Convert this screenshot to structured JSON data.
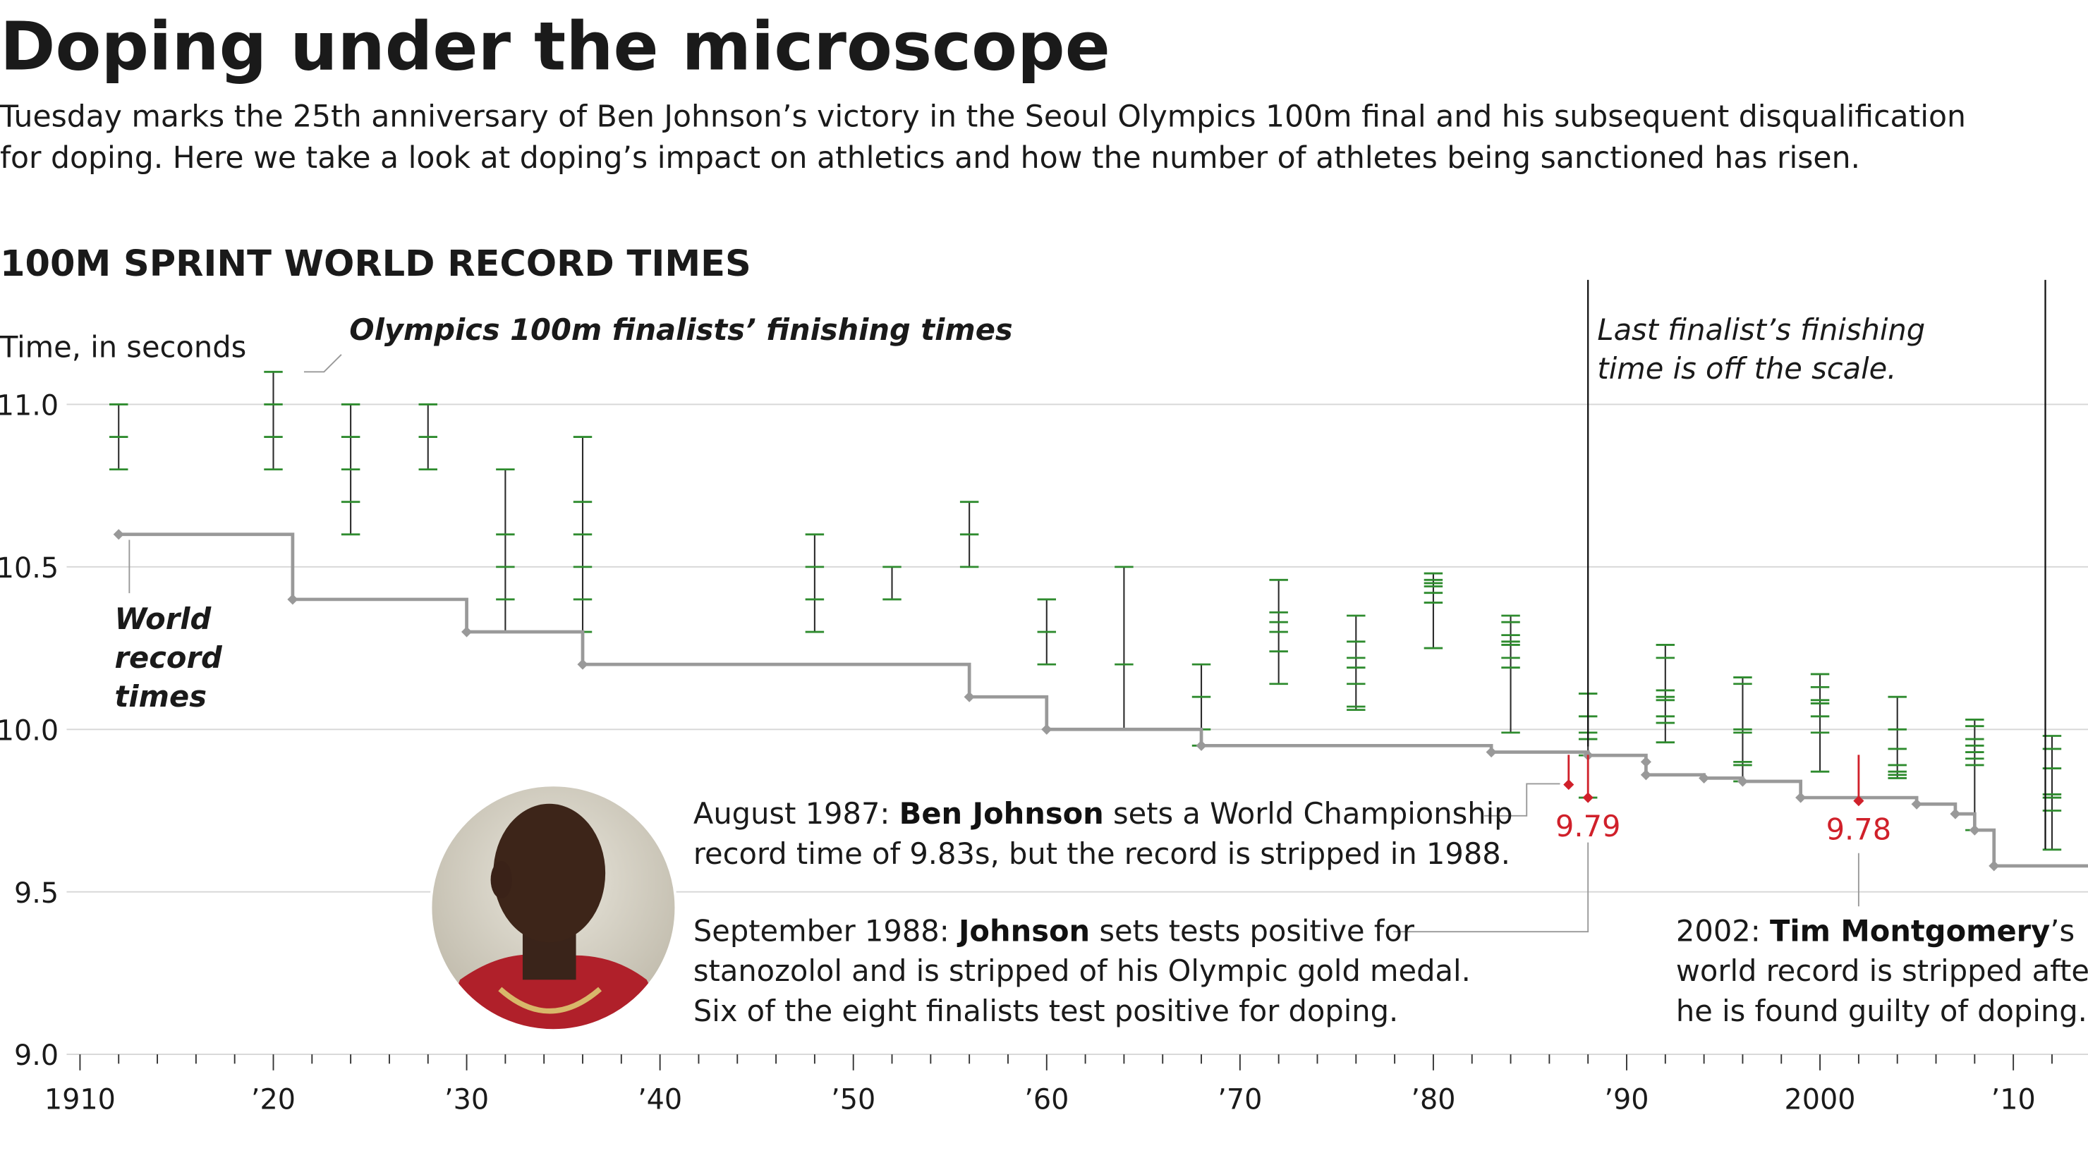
{
  "header": {
    "title": "Doping under the microscope",
    "subtitle_lines": [
      "Tuesday marks the 25th anniversary of Ben Johnson’s victory in the Seoul Olympics 100m final and his subsequent disqualification",
      "for doping. Here we take a look at doping’s impact on athletics and how the number of athletes being sanctioned has risen."
    ]
  },
  "chart_data": {
    "type": "step",
    "title": "100M SPRINT WORLD RECORD TIMES",
    "y_label": "Time, in seconds",
    "xlim": [
      1910,
      2014
    ],
    "ylim": [
      9.0,
      11.1
    ],
    "xticks": [
      1910,
      {
        "value": 1920,
        "label": "’20"
      },
      {
        "value": 1930,
        "label": "’30"
      },
      {
        "value": 1940,
        "label": "’40"
      },
      {
        "value": 1950,
        "label": "’50"
      },
      {
        "value": 1960,
        "label": "’60"
      },
      {
        "value": 1970,
        "label": "’70"
      },
      {
        "value": 1980,
        "label": "’80"
      },
      {
        "value": 1990,
        "label": "’90"
      },
      2000,
      {
        "value": 2010,
        "label": "’10"
      }
    ],
    "xminor_ticks": [
      1912,
      1914,
      1916,
      1918,
      1922,
      1924,
      1926,
      1928,
      1932,
      1934,
      1936,
      1938,
      1942,
      1944,
      1946,
      1948,
      1952,
      1954,
      1956,
      1958,
      1962,
      1964,
      1966,
      1968,
      1972,
      1974,
      1976,
      1978,
      1982,
      1984,
      1986,
      1988,
      1992,
      1994,
      1996,
      1998,
      2002,
      2004,
      2006,
      2008,
      2012
    ],
    "yticks": [
      {
        "value": 9.0,
        "label": "9.0"
      },
      9.5,
      {
        "value": 10.0,
        "label": "10.0"
      },
      10.5,
      {
        "value": 11.0,
        "label": "11.0"
      }
    ],
    "grid": true,
    "series": [
      {
        "name": "World record times",
        "color": "#999999",
        "x": [
          1912,
          1921,
          1930,
          1936,
          1956,
          1960,
          1968,
          1983,
          1988,
          1991,
          1991,
          1994,
          1996,
          1999,
          2005,
          2007,
          2008,
          2009
        ],
        "values": [
          10.6,
          10.4,
          10.3,
          10.2,
          10.1,
          10.0,
          9.95,
          9.93,
          9.92,
          9.9,
          9.86,
          9.85,
          9.84,
          9.79,
          9.77,
          9.74,
          9.69,
          9.58
        ]
      }
    ],
    "series_label_lines": [
      "World",
      "record",
      "times"
    ],
    "stripped": {
      "color": "#d0202a",
      "x": [
        1987,
        1988,
        2002
      ],
      "values": [
        9.83,
        9.79,
        9.78
      ],
      "value_labels": [
        null,
        "9.79",
        "9.78"
      ]
    },
    "finalists": {
      "name": "Olympics 100m finalists’ finishing times",
      "color": "#2e8b2e",
      "x": [
        1912,
        1920,
        1924,
        1928,
        1932,
        1936,
        1948,
        1952,
        1956,
        1960,
        1964,
        1968,
        1972,
        1976,
        1980,
        1984,
        1988,
        1992,
        1996,
        2000,
        2004,
        2008,
        2012
      ],
      "values": [
        [
          10.8,
          10.9,
          11.0
        ],
        [
          10.8,
          10.9,
          11.0,
          11.1
        ],
        [
          10.6,
          10.7,
          10.8,
          10.9,
          11.0
        ],
        [
          10.8,
          10.9,
          11.0
        ],
        [
          10.3,
          10.4,
          10.5,
          10.6,
          10.8
        ],
        [
          10.3,
          10.4,
          10.5,
          10.6,
          10.7,
          10.9
        ],
        [
          10.3,
          10.4,
          10.5,
          10.6
        ],
        [
          10.4,
          10.5
        ],
        [
          10.5,
          10.6,
          10.7
        ],
        [
          10.2,
          10.3,
          10.4
        ],
        [
          10.0,
          10.2,
          10.5
        ],
        [
          9.95,
          10.0,
          10.1,
          10.2
        ],
        [
          10.14,
          10.24,
          10.3,
          10.33,
          10.36,
          10.46
        ],
        [
          10.06,
          10.07,
          10.14,
          10.19,
          10.22,
          10.27,
          10.35
        ],
        [
          10.25,
          10.39,
          10.42,
          10.44,
          10.45,
          10.46,
          10.48
        ],
        [
          9.99,
          10.19,
          10.22,
          10.26,
          10.27,
          10.29,
          10.33,
          10.35
        ],
        [
          9.79,
          9.92,
          9.97,
          9.99,
          10.04,
          10.11
        ],
        [
          9.96,
          10.02,
          10.04,
          10.09,
          10.1,
          10.12,
          10.22,
          10.26
        ],
        [
          9.84,
          9.89,
          9.9,
          9.99,
          10.0,
          10.14,
          10.16
        ],
        [
          9.87,
          9.99,
          10.04,
          10.08,
          10.09,
          10.13,
          10.17
        ],
        [
          9.85,
          9.86,
          9.87,
          9.89,
          9.94,
          10.0,
          10.1
        ],
        [
          9.69,
          9.89,
          9.91,
          9.93,
          9.95,
          9.97,
          10.01,
          10.03
        ],
        [
          9.63,
          9.75,
          9.79,
          9.8,
          9.88,
          9.94,
          9.98
        ]
      ]
    },
    "annotations": {
      "off_scale_lines": [
        "Last finalist’s finishing",
        "time is off the scale."
      ],
      "august_1987_lines": [
        [
          "August 1987: ",
          "Ben Johnson",
          " sets a World Championship"
        ],
        [
          "record time of 9.83s, but the record is stripped in 1988."
        ]
      ],
      "september_1988_lines": [
        [
          "September 1988: ",
          "Johnson",
          " sets tests positive for"
        ],
        [
          "stanozolol and is stripped of his Olympic gold medal."
        ],
        [
          "Six of the eight finalists test positive for doping."
        ]
      ],
      "montgomery_lines": [
        [
          "2002: ",
          "Tim Montgomery",
          "’s"
        ],
        [
          "world record is stripped after"
        ],
        [
          "he is found guilty of doping."
        ]
      ]
    }
  }
}
